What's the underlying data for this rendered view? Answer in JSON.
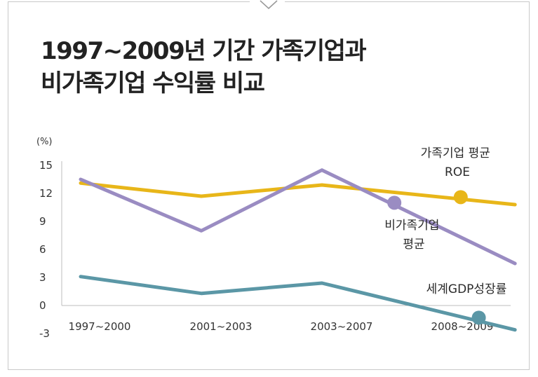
{
  "chart_data": {
    "type": "line",
    "title_lines": [
      "1997~2009년 기간 가족기업과",
      "비가족기업 수익률 비교"
    ],
    "ylabel": "(%)",
    "ylim": [
      -3,
      15
    ],
    "yticks": [
      "15",
      "12",
      "9",
      "6",
      "3",
      "0",
      "-3"
    ],
    "ytick_values": [
      15,
      12,
      9,
      6,
      3,
      0,
      -3
    ],
    "categories": [
      "1997~2000",
      "2001~2003",
      "2003~2007",
      "2008~2009"
    ],
    "x_range": [
      0,
      3
    ],
    "grid": false,
    "series": [
      {
        "name_lines": [
          "가족기업 평균",
          "ROE"
        ],
        "color": "#E8B619",
        "x": [
          0,
          1,
          2,
          3.6
        ],
        "values": [
          13.1,
          11.7,
          12.9,
          10.8
        ],
        "marker": {
          "x": 3.15,
          "value": 11.6
        }
      },
      {
        "name_lines": [
          "비가족기업",
          "평균"
        ],
        "color": "#9A8CC2",
        "x": [
          0,
          1,
          2,
          3.6
        ],
        "values": [
          13.5,
          8.0,
          14.5,
          4.5
        ],
        "marker": {
          "x": 2.6,
          "value": 11.0
        }
      },
      {
        "name_lines": [
          "세계GDP성장률"
        ],
        "color": "#5B97A6",
        "x": [
          0,
          1,
          2,
          3.6
        ],
        "values": [
          3.1,
          1.3,
          2.4,
          -2.6
        ],
        "marker": {
          "x": 3.3,
          "value": -1.3
        }
      }
    ]
  }
}
